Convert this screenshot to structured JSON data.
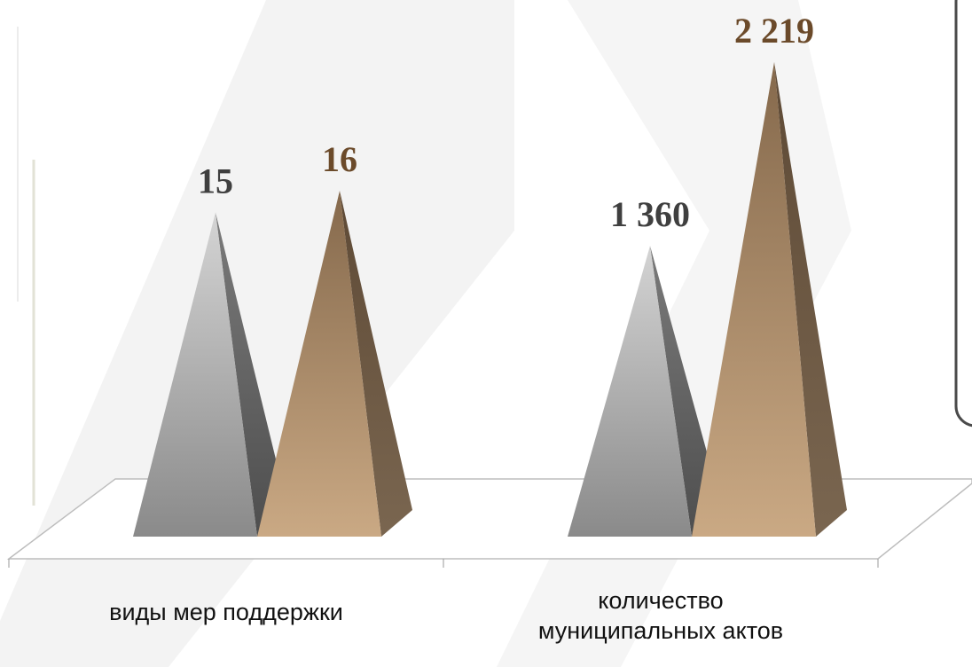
{
  "chart_data": {
    "type": "pyramid",
    "categories": [
      "виды мер поддержки",
      "количество муниципальных актов"
    ],
    "series": [
      {
        "color": "#9a9a9a",
        "label_color": "#3f3f3f",
        "values": [
          15,
          1360
        ],
        "value_labels": [
          "15",
          "1 360"
        ]
      },
      {
        "color": "#a88a68",
        "label_color": "#6b4a2a",
        "values": [
          16,
          2219
        ],
        "value_labels": [
          "16",
          "2 219"
        ]
      }
    ]
  }
}
